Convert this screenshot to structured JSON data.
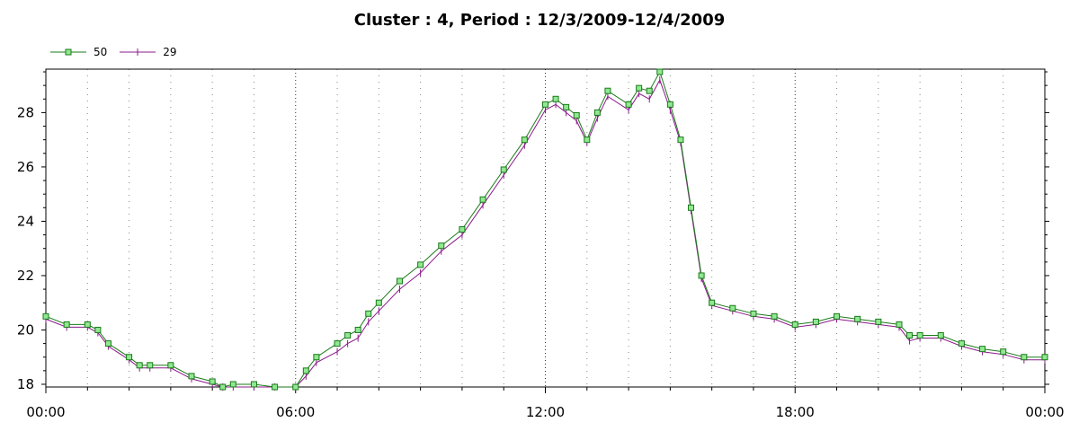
{
  "chart_data": {
    "type": "line",
    "title": "Cluster : 4, Period : 12/3/2009-12/4/2009",
    "xlabel": "",
    "ylabel": "",
    "x_ticks": [
      "00:00",
      "06:00",
      "12:00",
      "18:00",
      "00:00"
    ],
    "y_ticks": [
      "18",
      "20",
      "22",
      "24",
      "26",
      "28"
    ],
    "xlim": [
      "2009-12-03 00:00",
      "2009-12-04 00:00"
    ],
    "ylim": [
      17.9,
      29.6
    ],
    "grid": true,
    "legend_position": "top-left",
    "series": [
      {
        "name": "50",
        "color": "#1a7a1a",
        "marker": "square",
        "marker_fill": "#90e890",
        "x": [
          "00:00",
          "00:30",
          "01:00",
          "01:15",
          "01:30",
          "02:00",
          "02:15",
          "02:30",
          "03:00",
          "03:30",
          "04:00",
          "04:15",
          "04:30",
          "05:00",
          "05:30",
          "06:00",
          "06:15",
          "06:30",
          "07:00",
          "07:15",
          "07:30",
          "07:45",
          "08:00",
          "08:30",
          "09:00",
          "09:30",
          "10:00",
          "10:30",
          "11:00",
          "11:30",
          "12:00",
          "12:15",
          "12:30",
          "12:45",
          "13:00",
          "13:15",
          "13:30",
          "14:00",
          "14:15",
          "14:30",
          "14:45",
          "15:00",
          "15:15",
          "15:30",
          "15:45",
          "16:00",
          "16:30",
          "17:00",
          "17:30",
          "18:00",
          "18:30",
          "19:00",
          "19:30",
          "20:00",
          "20:30",
          "20:45",
          "21:00",
          "21:30",
          "22:00",
          "22:30",
          "23:00",
          "23:30",
          "00:00"
        ],
        "values": [
          20.5,
          20.2,
          20.2,
          20.0,
          19.5,
          19.0,
          18.7,
          18.7,
          18.7,
          18.3,
          18.1,
          17.9,
          18.0,
          18.0,
          17.9,
          17.9,
          18.5,
          19.0,
          19.5,
          19.8,
          20.0,
          20.6,
          21.0,
          21.8,
          22.4,
          23.1,
          23.7,
          24.8,
          25.9,
          27.0,
          28.3,
          28.5,
          28.2,
          27.9,
          27.0,
          28.0,
          28.8,
          28.3,
          28.9,
          28.8,
          29.5,
          28.3,
          27.0,
          24.5,
          22.0,
          21.0,
          20.8,
          20.6,
          20.5,
          20.2,
          20.3,
          20.5,
          20.4,
          20.3,
          20.2,
          19.8,
          19.8,
          19.8,
          19.5,
          19.3,
          19.2,
          19.0,
          19.0
        ]
      },
      {
        "name": "29",
        "color": "#8b1a8b",
        "marker": "plus",
        "x": [
          "00:00",
          "00:30",
          "01:00",
          "01:15",
          "01:30",
          "02:00",
          "02:15",
          "02:30",
          "03:00",
          "03:30",
          "04:00",
          "04:15",
          "04:30",
          "05:00",
          "05:30",
          "06:00",
          "06:15",
          "06:30",
          "07:00",
          "07:15",
          "07:30",
          "07:45",
          "08:00",
          "08:30",
          "09:00",
          "09:30",
          "10:00",
          "10:30",
          "11:00",
          "11:30",
          "12:00",
          "12:15",
          "12:30",
          "12:45",
          "13:00",
          "13:15",
          "13:30",
          "14:00",
          "14:15",
          "14:30",
          "14:45",
          "15:00",
          "15:15",
          "15:30",
          "15:45",
          "16:00",
          "16:30",
          "17:00",
          "17:30",
          "18:00",
          "18:30",
          "19:00",
          "19:30",
          "20:00",
          "20:30",
          "20:45",
          "21:00",
          "21:30",
          "22:00",
          "22:30",
          "23:00",
          "23:30",
          "00:00"
        ],
        "values": [
          20.4,
          20.1,
          20.1,
          19.9,
          19.4,
          18.9,
          18.6,
          18.6,
          18.6,
          18.2,
          18.0,
          17.9,
          17.9,
          17.9,
          17.9,
          17.9,
          18.3,
          18.8,
          19.2,
          19.5,
          19.7,
          20.3,
          20.7,
          21.5,
          22.1,
          22.9,
          23.5,
          24.6,
          25.7,
          26.8,
          28.1,
          28.3,
          28.0,
          27.7,
          26.9,
          27.8,
          28.6,
          28.1,
          28.7,
          28.5,
          29.2,
          28.1,
          26.9,
          24.4,
          21.9,
          20.9,
          20.7,
          20.5,
          20.4,
          20.1,
          20.2,
          20.4,
          20.3,
          20.2,
          20.1,
          19.6,
          19.7,
          19.7,
          19.4,
          19.2,
          19.1,
          18.9,
          18.9
        ]
      }
    ]
  }
}
